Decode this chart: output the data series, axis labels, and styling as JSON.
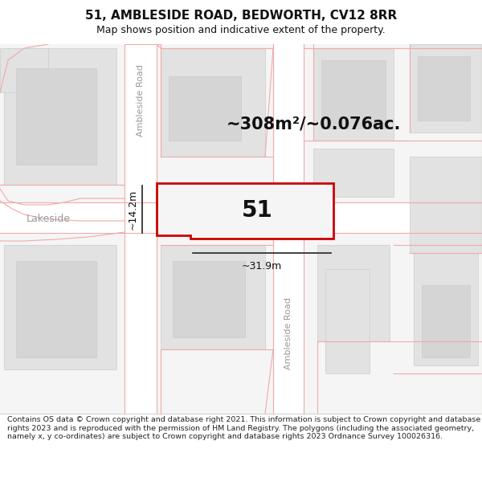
{
  "title_line1": "51, AMBLESIDE ROAD, BEDWORTH, CV12 8RR",
  "title_line2": "Map shows position and indicative extent of the property.",
  "footer_text": "Contains OS data © Crown copyright and database right 2021. This information is subject to Crown copyright and database rights 2023 and is reproduced with the permission of HM Land Registry. The polygons (including the associated geometry, namely x, y co-ordinates) are subject to Crown copyright and database rights 2023 Ordnance Survey 100026316.",
  "area_text": "~308m²/~0.076ac.",
  "number_label": "51",
  "dim_width": "~31.9m",
  "dim_height": "~14.2m",
  "bg_color": "#f5f5f5",
  "road_color": "#ffffff",
  "block_color": "#e2e2e2",
  "block_edge": "#cccccc",
  "plot_fill": "#f5f5f5",
  "plot_border_color": "#cc0000",
  "street_line_color": "#f0aaaa",
  "dim_line_color": "#333333",
  "text_dark": "#111111",
  "road_label_color": "#999999",
  "title_fontsize": 11,
  "subtitle_fontsize": 9,
  "area_fontsize": 15,
  "label_fontsize": 20,
  "dim_fontsize": 9,
  "road_label_fontsize": 8,
  "footer_fontsize": 6.8
}
